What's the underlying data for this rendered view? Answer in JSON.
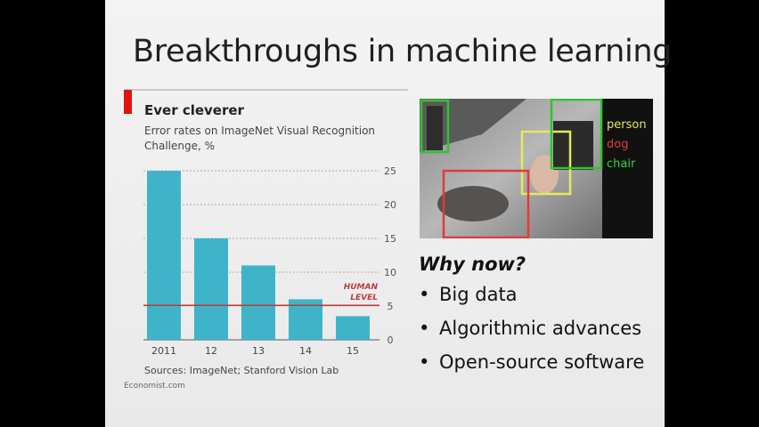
{
  "slide": {
    "title": "Breakthroughs in machine learning"
  },
  "chart_card": {
    "title": "Ever cleverer",
    "subtitle": "Error rates on ImageNet Visual Recognition Challenge, %",
    "source": "Sources: ImageNet; Stanford Vision Lab",
    "credit": "Economist.com",
    "accent_color": "#e3120b",
    "bar_color": "#3fb4c9"
  },
  "chart_data": {
    "type": "bar",
    "categories": [
      "2011",
      "12",
      "13",
      "14",
      "15"
    ],
    "values": [
      25.0,
      15.0,
      11.0,
      6.0,
      3.5
    ],
    "title": "Ever cleverer",
    "subtitle": "Error rates on ImageNet Visual Recognition Challenge, %",
    "xlabel": "",
    "ylabel": "",
    "ylim": [
      0,
      25
    ],
    "yticks": [
      0,
      5,
      10,
      15,
      20,
      25
    ],
    "y_axis_side": "right",
    "grid": true,
    "reference_line": {
      "value": 5.1,
      "label_lines": [
        "HUMAN",
        "LEVEL"
      ],
      "color": "#c0393b"
    }
  },
  "detection_image": {
    "labels": [
      {
        "text": "person",
        "color": "#e8e85a"
      },
      {
        "text": "dog",
        "color": "#e23a3a"
      },
      {
        "text": "chair",
        "color": "#3ccf3c"
      }
    ],
    "box_colors": [
      "#2fc42f",
      "#e8e85a",
      "#e23a3a",
      "#2fc42f"
    ]
  },
  "why": {
    "heading": "Why now?",
    "bullets": [
      "Big data",
      "Algorithmic advances",
      "Open-source software"
    ],
    "bullet_glyph": "•"
  }
}
